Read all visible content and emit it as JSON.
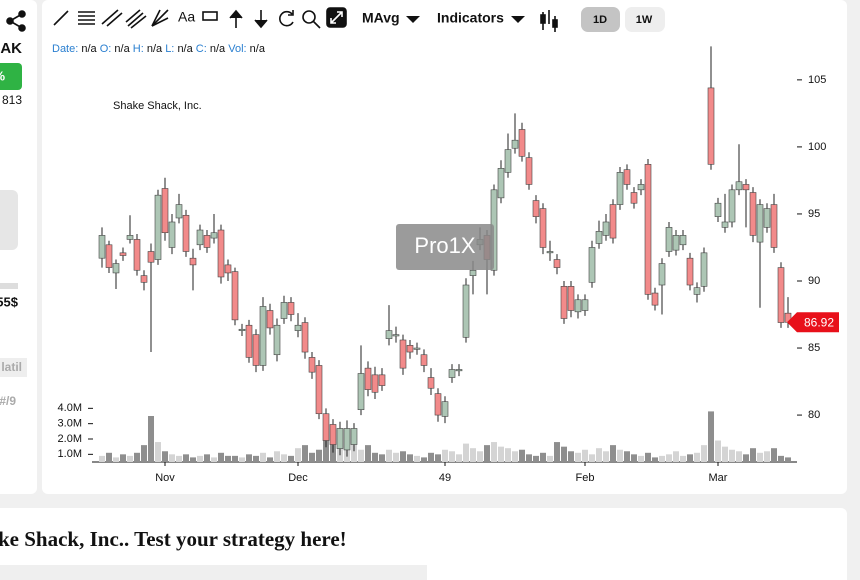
{
  "sidebar": {
    "ticker": "AK",
    "change": "%",
    "price": "813",
    "value": "55$",
    "tab": "latil",
    "rank": "#/9"
  },
  "toolbar": {
    "text_tool": "Aa",
    "moving_average": "MAvg",
    "indicators": "Indicators",
    "ranges": [
      "1D",
      "1W"
    ]
  },
  "ohlc_legend": [
    {
      "label": "Date:",
      "value": "n/a"
    },
    {
      "label": "O:",
      "value": "n/a"
    },
    {
      "label": "H:",
      "value": "n/a"
    },
    {
      "label": "L:",
      "value": "n/a"
    },
    {
      "label": "C:",
      "value": "n/a"
    },
    {
      "label": "Vol:",
      "value": "n/a"
    }
  ],
  "chart_data": {
    "type": "candlestick",
    "title": "Shake Shack, Inc.",
    "watermark": "Pro1X",
    "open": [
      91.7,
      92.7,
      90.6,
      92.1,
      93.1,
      93.1,
      90.4,
      92.2,
      91.6,
      96.9,
      92.5,
      94.7,
      94.9,
      91.7,
      92.7,
      93.4,
      93.2,
      93.8,
      91.2,
      90.7,
      86.3,
      86.7,
      86.0,
      83.7,
      87.8,
      84.5,
      87.2,
      88.4,
      86.3,
      86.9,
      84.3,
      83.7,
      80.1,
      79.3,
      77.5,
      77.4,
      77.8,
      80.4,
      83.5,
      83.0,
      83.0,
      85.7,
      85.9,
      85.6,
      85.2,
      84.9,
      84.5,
      82.8,
      81.6,
      79.9,
      82.8,
      83.3,
      85.8,
      90.4,
      92.7,
      93.4,
      90.8,
      96.2,
      98.1,
      99.9,
      101.3,
      99.2,
      96.0,
      95.4,
      92.1,
      91.6,
      89.6,
      89.6,
      87.7,
      87.8,
      89.9,
      92.8,
      93.4,
      95.7,
      95.7,
      98.3,
      96.6,
      96.8,
      98.7,
      89.1,
      89.7,
      92.2,
      92.3,
      92.7,
      91.7,
      89.0,
      89.6,
      104.4,
      94.8,
      94.0,
      94.4,
      96.8,
      97.2,
      96.6,
      92.9,
      94.0,
      95.7,
      91.0,
      87.6
    ],
    "high": [
      94.0,
      93.0,
      91.6,
      92.5,
      94.9,
      93.5,
      90.8,
      92.8,
      96.8,
      97.7,
      95.0,
      96.5,
      95.3,
      92.4,
      94.2,
      93.8,
      95.0,
      94.2,
      91.6,
      91.0,
      86.8,
      87.1,
      86.4,
      88.8,
      88.3,
      87.2,
      88.9,
      88.8,
      87.6,
      87.3,
      84.7,
      84.1,
      80.5,
      79.7,
      79.5,
      79.6,
      79.4,
      85.2,
      84.0,
      83.6,
      83.5,
      88.2,
      86.6,
      86.0,
      85.6,
      85.4,
      84.9,
      83.5,
      82.0,
      81.4,
      83.8,
      83.8,
      90.2,
      91.5,
      94.0,
      93.8,
      97.2,
      99.0,
      101.0,
      102.5,
      101.8,
      99.6,
      96.4,
      95.8,
      93.0,
      92.0,
      90.0,
      90.0,
      89.0,
      89.0,
      93.0,
      94.5,
      95.0,
      96.1,
      98.5,
      98.7,
      97.0,
      97.6,
      99.1,
      89.5,
      91.7,
      94.4,
      93.8,
      93.8,
      92.1,
      89.9,
      92.5,
      107.5,
      96.2,
      96.5,
      97.2,
      100.2,
      97.6,
      97.0,
      96.1,
      95.8,
      96.5,
      91.4,
      88.8
    ],
    "low": [
      91.0,
      90.6,
      89.4,
      91.5,
      92.8,
      90.4,
      89.3,
      84.7,
      91.2,
      93.0,
      92.0,
      94.3,
      91.8,
      89.3,
      92.3,
      92.1,
      92.8,
      89.8,
      90.0,
      86.7,
      85.9,
      83.9,
      83.2,
      83.3,
      86.0,
      84.0,
      86.8,
      87.0,
      85.8,
      84.2,
      82.7,
      79.7,
      77.6,
      77.2,
      77.0,
      76.9,
      77.3,
      80.0,
      81.4,
      81.2,
      81.8,
      85.2,
      85.4,
      83.0,
      84.2,
      84.5,
      83.2,
      81.5,
      79.5,
      79.4,
      82.4,
      82.9,
      85.4,
      89.0,
      92.3,
      89.0,
      90.4,
      95.8,
      97.7,
      99.5,
      98.9,
      96.8,
      94.3,
      92.0,
      91.5,
      90.5,
      86.8,
      87.3,
      87.2,
      87.4,
      89.5,
      92.4,
      93.0,
      92.8,
      95.3,
      96.8,
      95.4,
      96.4,
      88.6,
      87.8,
      87.5,
      91.8,
      91.9,
      92.3,
      89.3,
      88.4,
      89.2,
      98.3,
      94.4,
      93.6,
      94.0,
      96.4,
      94.0,
      92.9,
      88.0,
      93.6,
      92.1,
      86.5,
      86.5
    ],
    "close": [
      93.4,
      91.0,
      91.3,
      91.9,
      93.4,
      90.8,
      89.9,
      91.4,
      96.4,
      93.6,
      94.4,
      95.7,
      92.2,
      91.2,
      93.8,
      92.5,
      93.6,
      90.3,
      90.6,
      87.1,
      86.4,
      84.3,
      83.7,
      88.1,
      86.5,
      86.7,
      88.4,
      87.5,
      86.7,
      84.7,
      83.2,
      80.1,
      78.1,
      77.8,
      79.0,
      79.0,
      79.0,
      83.1,
      81.9,
      81.7,
      82.2,
      86.3,
      86.0,
      83.5,
      84.7,
      85.0,
      83.7,
      82.0,
      80.0,
      81.0,
      83.4,
      83.4,
      89.7,
      90.8,
      93.1,
      91.6,
      96.8,
      98.4,
      99.8,
      100.5,
      99.3,
      97.2,
      94.8,
      92.5,
      92.2,
      91.0,
      87.2,
      87.8,
      88.6,
      88.6,
      92.5,
      93.7,
      94.4,
      93.2,
      98.1,
      97.2,
      95.8,
      97.2,
      89.0,
      88.2,
      91.3,
      94.0,
      93.4,
      93.4,
      89.7,
      89.5,
      92.1,
      98.7,
      95.8,
      94.4,
      96.8,
      97.4,
      96.8,
      93.4,
      95.7,
      95.4,
      92.5,
      86.9,
      86.92
    ],
    "up_color": "#adc6b5",
    "down_color": "#f28a8a",
    "last_color": "#e8101a",
    "xlim": [
      0,
      98
    ],
    "xticks": [
      {
        "value": 9,
        "label": "Nov"
      },
      {
        "value": 28,
        "label": "Dec"
      },
      49,
      {
        "value": 69,
        "label": "Feb"
      },
      {
        "value": 88,
        "label": "Mar"
      }
    ],
    "ylim": [
      76.5,
      107.6
    ],
    "yticks": [
      80,
      85,
      90,
      95,
      100,
      105
    ],
    "volume": {
      "values": [
        0.9,
        1.1,
        0.8,
        1.0,
        0.9,
        1.1,
        1.6,
        3.5,
        1.8,
        1.2,
        1.0,
        0.9,
        1.0,
        0.8,
        0.9,
        1.0,
        0.8,
        1.1,
        0.9,
        0.9,
        0.8,
        1.0,
        0.9,
        1.1,
        0.8,
        1.2,
        1.0,
        0.9,
        1.4,
        1.6,
        1.1,
        1.3,
        1.9,
        1.7,
        2.7,
        1.4,
        1.8,
        1.3,
        1.6,
        1.1,
        1.0,
        1.3,
        1.1,
        1.2,
        1.0,
        0.9,
        0.8,
        1.1,
        1.0,
        1.3,
        1.2,
        1.0,
        1.7,
        1.4,
        1.2,
        1.6,
        1.8,
        1.5,
        1.4,
        1.2,
        1.3,
        1.0,
        0.9,
        1.1,
        0.9,
        1.8,
        1.5,
        1.2,
        1.1,
        1.3,
        1.0,
        1.4,
        1.2,
        1.6,
        1.3,
        1.2,
        1.0,
        0.9,
        1.1,
        0.8,
        0.9,
        1.0,
        1.2,
        0.9,
        1.0,
        1.1,
        1.6,
        3.8,
        1.9,
        1.5,
        1.3,
        1.2,
        1.0,
        1.4,
        1.1,
        1.2,
        1.4,
        0.9,
        0.8
      ],
      "up_color": "#d4d4d4",
      "down_color": "#8e8e8e",
      "ylim": [
        0.5,
        5
      ],
      "yticks": [
        {
          "value": 1,
          "label": "1.0M"
        },
        {
          "value": 2,
          "label": "2.0M"
        },
        {
          "value": 3,
          "label": "3.0M"
        },
        {
          "value": 4,
          "label": "4.0M"
        }
      ]
    }
  },
  "footer": {
    "heading": "ke Shack, Inc.. Test your strategy here!"
  }
}
